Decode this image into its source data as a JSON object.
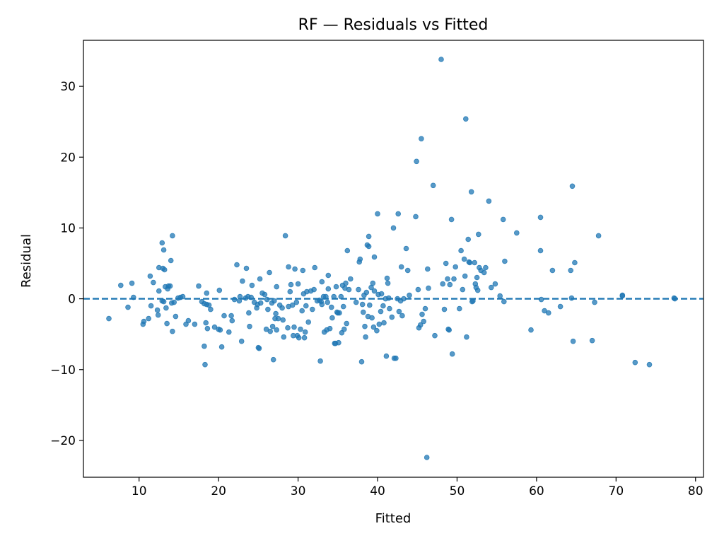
{
  "chart_data": {
    "type": "scatter",
    "title": "RF — Residuals vs Fitted",
    "xlabel": "Fitted",
    "ylabel": "Residual",
    "xlim": [
      3,
      81
    ],
    "ylim": [
      -25.2,
      36.5
    ],
    "xticks": [
      10,
      20,
      30,
      40,
      50,
      60,
      70,
      80
    ],
    "yticks": [
      -20,
      -10,
      0,
      10,
      20,
      30
    ],
    "ytick_labels": [
      "−20",
      "−10",
      "0",
      "10",
      "20",
      "30"
    ],
    "reference_line": {
      "y": 0,
      "style": "dashed"
    },
    "grid": false,
    "legend": "none",
    "point_color": "#1f77b4",
    "points": [
      [
        6.2,
        -2.8
      ],
      [
        7.7,
        1.9
      ],
      [
        8.6,
        -1.2
      ],
      [
        9.1,
        2.2
      ],
      [
        9.3,
        0.2
      ],
      [
        10.5,
        -3.6
      ],
      [
        10.6,
        -3.2
      ],
      [
        11.2,
        -2.8
      ],
      [
        11.4,
        3.2
      ],
      [
        11.5,
        -1.0
      ],
      [
        11.8,
        2.3
      ],
      [
        12.3,
        -1.6
      ],
      [
        12.4,
        -2.3
      ],
      [
        12.5,
        1.1
      ],
      [
        12.5,
        4.4
      ],
      [
        12.9,
        -0.3
      ],
      [
        12.9,
        7.9
      ],
      [
        13.0,
        4.3
      ],
      [
        13.1,
        6.9
      ],
      [
        13.1,
        -0.4
      ],
      [
        13.2,
        4.1
      ],
      [
        13.3,
        1.7
      ],
      [
        13.4,
        -1.3
      ],
      [
        13.5,
        -3.5
      ],
      [
        13.6,
        1.4
      ],
      [
        13.7,
        1.8
      ],
      [
        13.9,
        1.8
      ],
      [
        14.0,
        5.4
      ],
      [
        14.1,
        -0.6
      ],
      [
        14.2,
        8.9
      ],
      [
        14.2,
        -4.6
      ],
      [
        14.4,
        -0.5
      ],
      [
        14.6,
        -2.5
      ],
      [
        14.9,
        0.1
      ],
      [
        15.2,
        0.2
      ],
      [
        15.5,
        0.3
      ],
      [
        15.9,
        -3.6
      ],
      [
        16.2,
        -3.1
      ],
      [
        17.0,
        -3.6
      ],
      [
        17.5,
        1.8
      ],
      [
        17.9,
        -0.4
      ],
      [
        18.2,
        -6.7
      ],
      [
        18.2,
        -0.7
      ],
      [
        18.3,
        -9.3
      ],
      [
        18.4,
        -3.4
      ],
      [
        18.5,
        -0.8
      ],
      [
        18.5,
        0.8
      ],
      [
        18.6,
        -4.2
      ],
      [
        18.8,
        -0.9
      ],
      [
        19.0,
        -1.5
      ],
      [
        19.5,
        -4.0
      ],
      [
        20.0,
        -4.3
      ],
      [
        20.1,
        1.2
      ],
      [
        20.2,
        -4.4
      ],
      [
        20.4,
        -6.8
      ],
      [
        20.7,
        -2.4
      ],
      [
        21.3,
        -4.7
      ],
      [
        21.6,
        -2.4
      ],
      [
        21.7,
        -3.1
      ],
      [
        22.0,
        -0.1
      ],
      [
        22.3,
        4.8
      ],
      [
        22.6,
        -0.3
      ],
      [
        22.7,
        0.3
      ],
      [
        22.9,
        -6.0
      ],
      [
        23.0,
        2.5
      ],
      [
        23.4,
        0.1
      ],
      [
        23.5,
        4.3
      ],
      [
        23.7,
        0.3
      ],
      [
        23.8,
        -2.0
      ],
      [
        23.9,
        -3.9
      ],
      [
        24.1,
        0.2
      ],
      [
        24.2,
        1.9
      ],
      [
        24.5,
        -0.5
      ],
      [
        24.8,
        -1.3
      ],
      [
        24.9,
        -0.8
      ],
      [
        25.0,
        -6.9
      ],
      [
        25.1,
        -7.0
      ],
      [
        25.2,
        2.8
      ],
      [
        25.3,
        -0.6
      ],
      [
        25.5,
        0.8
      ],
      [
        25.8,
        0.6
      ],
      [
        26.0,
        -4.3
      ],
      [
        26.1,
        -0.1
      ],
      [
        26.2,
        -1.5
      ],
      [
        26.4,
        3.7
      ],
      [
        26.5,
        -4.6
      ],
      [
        26.7,
        -0.6
      ],
      [
        26.8,
        -3.9
      ],
      [
        26.9,
        -8.6
      ],
      [
        27.0,
        -0.3
      ],
      [
        27.1,
        -2.8
      ],
      [
        27.2,
        -2.1
      ],
      [
        27.3,
        -4.4
      ],
      [
        27.3,
        1.7
      ],
      [
        27.5,
        -2.8
      ],
      [
        27.7,
        -0.9
      ],
      [
        28.0,
        -1.3
      ],
      [
        28.1,
        -3.0
      ],
      [
        28.2,
        -5.4
      ],
      [
        28.4,
        8.9
      ],
      [
        28.7,
        -4.1
      ],
      [
        28.8,
        -1.1
      ],
      [
        28.8,
        4.5
      ],
      [
        29.0,
        1.0
      ],
      [
        29.1,
        2.0
      ],
      [
        29.3,
        -0.9
      ],
      [
        29.4,
        -5.2
      ],
      [
        29.5,
        -4.0
      ],
      [
        29.6,
        4.2
      ],
      [
        29.8,
        -0.5
      ],
      [
        29.9,
        -5.2
      ],
      [
        30.0,
        2.1
      ],
      [
        30.1,
        -5.5
      ],
      [
        30.3,
        -4.3
      ],
      [
        30.5,
        -1.7
      ],
      [
        30.6,
        4.0
      ],
      [
        30.7,
        0.7
      ],
      [
        30.8,
        -5.5
      ],
      [
        30.9,
        -4.7
      ],
      [
        31.0,
        -1.0
      ],
      [
        31.1,
        1.0
      ],
      [
        31.3,
        -3.3
      ],
      [
        31.6,
        1.1
      ],
      [
        31.8,
        -1.5
      ],
      [
        32.0,
        1.3
      ],
      [
        32.1,
        4.4
      ],
      [
        32.4,
        -0.3
      ],
      [
        32.7,
        -0.2
      ],
      [
        32.8,
        -8.8
      ],
      [
        32.9,
        -0.4
      ],
      [
        33.0,
        2.4
      ],
      [
        33.0,
        -0.8
      ],
      [
        33.2,
        0.3
      ],
      [
        33.3,
        -4.7
      ],
      [
        33.5,
        0.3
      ],
      [
        33.6,
        -4.4
      ],
      [
        33.7,
        -0.5
      ],
      [
        33.8,
        3.3
      ],
      [
        33.8,
        1.4
      ],
      [
        34.0,
        -4.2
      ],
      [
        34.2,
        -1.2
      ],
      [
        34.3,
        -2.7
      ],
      [
        34.5,
        0.3
      ],
      [
        34.6,
        -6.3
      ],
      [
        34.7,
        -6.3
      ],
      [
        34.8,
        1.7
      ],
      [
        34.9,
        -1.9
      ],
      [
        35.0,
        -2.0
      ],
      [
        35.1,
        -6.2
      ],
      [
        35.2,
        -2.0
      ],
      [
        35.4,
        0.3
      ],
      [
        35.5,
        -4.8
      ],
      [
        35.6,
        1.9
      ],
      [
        35.7,
        -1.1
      ],
      [
        35.8,
        -4.3
      ],
      [
        35.9,
        1.5
      ],
      [
        36.0,
        2.2
      ],
      [
        36.1,
        -3.5
      ],
      [
        36.2,
        6.8
      ],
      [
        36.4,
        1.3
      ],
      [
        36.6,
        2.8
      ],
      [
        37.3,
        -0.5
      ],
      [
        37.6,
        1.3
      ],
      [
        37.7,
        5.2
      ],
      [
        37.8,
        5.6
      ],
      [
        38.0,
        -8.9
      ],
      [
        38.1,
        -0.8
      ],
      [
        38.2,
        -1.9
      ],
      [
        38.3,
        0.5
      ],
      [
        38.4,
        -3.9
      ],
      [
        38.5,
        -5.4
      ],
      [
        38.6,
        0.9
      ],
      [
        38.7,
        7.6
      ],
      [
        38.8,
        -2.5
      ],
      [
        38.9,
        7.4
      ],
      [
        38.9,
        8.8
      ],
      [
        39.0,
        -0.9
      ],
      [
        39.2,
        1.6
      ],
      [
        39.3,
        -2.7
      ],
      [
        39.4,
        2.2
      ],
      [
        39.5,
        -4.0
      ],
      [
        39.6,
        1.1
      ],
      [
        39.6,
        5.9
      ],
      [
        39.9,
        -4.5
      ],
      [
        40.0,
        12.0
      ],
      [
        40.1,
        0.6
      ],
      [
        40.2,
        -3.6
      ],
      [
        40.4,
        -1.8
      ],
      [
        40.5,
        0.7
      ],
      [
        40.7,
        -1.0
      ],
      [
        40.8,
        -3.4
      ],
      [
        41.0,
        0.0
      ],
      [
        41.1,
        -8.1
      ],
      [
        41.2,
        2.9
      ],
      [
        41.3,
        2.2
      ],
      [
        41.4,
        0.1
      ],
      [
        41.5,
        -1.4
      ],
      [
        41.8,
        -2.6
      ],
      [
        42.0,
        10.0
      ],
      [
        42.1,
        -8.4
      ],
      [
        42.3,
        -8.4
      ],
      [
        42.5,
        0.0
      ],
      [
        42.6,
        12.0
      ],
      [
        42.7,
        -1.8
      ],
      [
        42.9,
        -0.3
      ],
      [
        43.0,
        4.5
      ],
      [
        43.1,
        -2.4
      ],
      [
        43.3,
        0.0
      ],
      [
        43.6,
        7.1
      ],
      [
        43.8,
        4.0
      ],
      [
        44.0,
        0.5
      ],
      [
        44.8,
        11.6
      ],
      [
        44.9,
        19.4
      ],
      [
        45.1,
        1.3
      ],
      [
        45.2,
        -4.1
      ],
      [
        45.4,
        -3.7
      ],
      [
        45.5,
        22.6
      ],
      [
        45.6,
        -2.2
      ],
      [
        45.8,
        -3.2
      ],
      [
        46.0,
        -1.4
      ],
      [
        46.2,
        -22.4
      ],
      [
        46.3,
        4.2
      ],
      [
        46.4,
        1.5
      ],
      [
        47.0,
        16.0
      ],
      [
        47.2,
        -5.2
      ],
      [
        48.0,
        33.8
      ],
      [
        48.2,
        2.1
      ],
      [
        48.4,
        -1.5
      ],
      [
        48.6,
        5.0
      ],
      [
        48.8,
        2.8
      ],
      [
        48.9,
        -4.3
      ],
      [
        49.0,
        -4.4
      ],
      [
        49.1,
        2.0
      ],
      [
        49.3,
        11.2
      ],
      [
        49.4,
        -7.8
      ],
      [
        49.6,
        2.8
      ],
      [
        49.8,
        4.5
      ],
      [
        50.3,
        -1.4
      ],
      [
        50.5,
        6.8
      ],
      [
        50.7,
        1.3
      ],
      [
        50.9,
        5.6
      ],
      [
        51.0,
        3.2
      ],
      [
        51.1,
        25.4
      ],
      [
        51.2,
        -5.4
      ],
      [
        51.4,
        8.4
      ],
      [
        51.5,
        5.2
      ],
      [
        51.6,
        5.1
      ],
      [
        51.8,
        15.1
      ],
      [
        51.9,
        -0.4
      ],
      [
        52.0,
        -0.3
      ],
      [
        52.2,
        5.1
      ],
      [
        52.3,
        2.1
      ],
      [
        52.4,
        1.6
      ],
      [
        52.5,
        3.0
      ],
      [
        52.6,
        1.2
      ],
      [
        52.7,
        9.1
      ],
      [
        52.8,
        4.4
      ],
      [
        53.0,
        4.0
      ],
      [
        53.4,
        3.7
      ],
      [
        53.6,
        4.4
      ],
      [
        54.0,
        13.8
      ],
      [
        54.3,
        1.6
      ],
      [
        54.8,
        2.1
      ],
      [
        55.4,
        0.4
      ],
      [
        55.8,
        11.2
      ],
      [
        55.9,
        -0.4
      ],
      [
        56.0,
        5.3
      ],
      [
        57.5,
        9.3
      ],
      [
        59.3,
        -4.4
      ],
      [
        60.5,
        11.5
      ],
      [
        60.5,
        6.8
      ],
      [
        60.6,
        -0.1
      ],
      [
        61.0,
        -1.7
      ],
      [
        61.5,
        -2.0
      ],
      [
        62.0,
        4.0
      ],
      [
        63.0,
        -1.1
      ],
      [
        64.3,
        4.0
      ],
      [
        64.4,
        0.1
      ],
      [
        64.5,
        15.9
      ],
      [
        64.6,
        -6.0
      ],
      [
        64.8,
        5.1
      ],
      [
        67.0,
        -5.9
      ],
      [
        67.3,
        -0.5
      ],
      [
        67.8,
        8.9
      ],
      [
        70.8,
        0.5
      ],
      [
        70.8,
        0.4
      ],
      [
        72.4,
        -9.0
      ],
      [
        74.2,
        -9.3
      ],
      [
        77.3,
        0.1
      ],
      [
        77.4,
        0.0
      ]
    ]
  }
}
